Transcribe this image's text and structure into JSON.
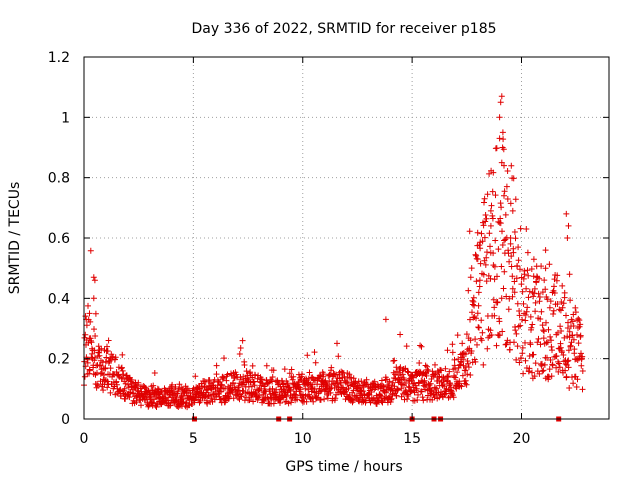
{
  "chart_data": {
    "type": "scatter",
    "title": "Day 336 of 2022, SRMTID for receiver p185",
    "xlabel": "GPS time / hours",
    "ylabel": "SRMTID / TECUs",
    "xlim": [
      0,
      24
    ],
    "ylim": [
      0,
      1.2
    ],
    "x_ticks": [
      0,
      5,
      10,
      15,
      20
    ],
    "x_tick_labels": [
      "0",
      "5",
      "10",
      "15",
      "20"
    ],
    "y_ticks": [
      0,
      0.2,
      0.4,
      0.6,
      0.8,
      1.0,
      1.2
    ],
    "y_tick_labels": [
      "0",
      "0.2",
      "0.4",
      "0.6",
      "0.8",
      "1",
      "1.2"
    ],
    "grid": true,
    "marker": "plus",
    "color": "#e00000",
    "zero_markers_x": [
      5.05,
      8.9,
      9.4,
      15.0,
      16.0,
      16.3,
      21.7
    ],
    "anchors": [
      [
        0.0,
        0.22
      ],
      [
        0.2,
        0.27
      ],
      [
        0.5,
        0.19
      ],
      [
        1.0,
        0.16
      ],
      [
        1.5,
        0.14
      ],
      [
        2.0,
        0.1
      ],
      [
        2.5,
        0.08
      ],
      [
        3.0,
        0.07
      ],
      [
        3.5,
        0.07
      ],
      [
        4.0,
        0.075
      ],
      [
        4.5,
        0.07
      ],
      [
        5.0,
        0.07
      ],
      [
        5.5,
        0.09
      ],
      [
        6.0,
        0.09
      ],
      [
        6.5,
        0.1
      ],
      [
        7.0,
        0.11
      ],
      [
        7.5,
        0.11
      ],
      [
        8.0,
        0.1
      ],
      [
        8.5,
        0.09
      ],
      [
        9.0,
        0.09
      ],
      [
        9.5,
        0.09
      ],
      [
        10.0,
        0.1
      ],
      [
        10.5,
        0.1
      ],
      [
        11.0,
        0.11
      ],
      [
        11.5,
        0.11
      ],
      [
        12.0,
        0.11
      ],
      [
        12.5,
        0.09
      ],
      [
        13.0,
        0.08
      ],
      [
        13.5,
        0.09
      ],
      [
        14.0,
        0.1
      ],
      [
        14.5,
        0.12
      ],
      [
        15.0,
        0.11
      ],
      [
        15.5,
        0.11
      ],
      [
        16.0,
        0.11
      ],
      [
        16.5,
        0.12
      ],
      [
        17.0,
        0.13
      ],
      [
        17.5,
        0.18
      ],
      [
        18.0,
        0.28
      ],
      [
        18.5,
        0.36
      ],
      [
        19.0,
        0.44
      ],
      [
        19.5,
        0.4
      ],
      [
        20.0,
        0.26
      ],
      [
        20.5,
        0.24
      ],
      [
        21.0,
        0.22
      ],
      [
        21.5,
        0.22
      ],
      [
        22.0,
        0.2
      ],
      [
        22.5,
        0.16
      ],
      [
        22.8,
        0.14
      ]
    ],
    "spikes": [
      [
        0.1,
        0.33
      ],
      [
        0.25,
        0.35
      ],
      [
        0.45,
        0.47
      ],
      [
        0.5,
        0.46
      ],
      [
        0.45,
        0.4
      ],
      [
        1.05,
        0.24
      ],
      [
        7.25,
        0.26
      ],
      [
        13.8,
        0.33
      ],
      [
        14.45,
        0.28
      ],
      [
        18.0,
        0.53
      ],
      [
        18.1,
        0.46
      ],
      [
        18.6,
        0.69
      ],
      [
        18.6,
        0.64
      ],
      [
        18.7,
        0.55
      ],
      [
        19.0,
        0.93
      ],
      [
        19.0,
        1.0
      ],
      [
        19.05,
        1.05
      ],
      [
        19.1,
        1.07
      ],
      [
        19.15,
        0.95
      ],
      [
        19.1,
        0.85
      ],
      [
        19.2,
        0.84
      ],
      [
        19.2,
        0.74
      ],
      [
        19.5,
        0.6
      ],
      [
        19.6,
        0.69
      ],
      [
        19.7,
        0.62
      ],
      [
        20.5,
        0.42
      ],
      [
        21.1,
        0.56
      ],
      [
        21.1,
        0.5
      ],
      [
        22.05,
        0.68
      ],
      [
        22.15,
        0.64
      ],
      [
        22.1,
        0.6
      ],
      [
        22.2,
        0.48
      ],
      [
        21.8,
        0.36
      ]
    ]
  }
}
